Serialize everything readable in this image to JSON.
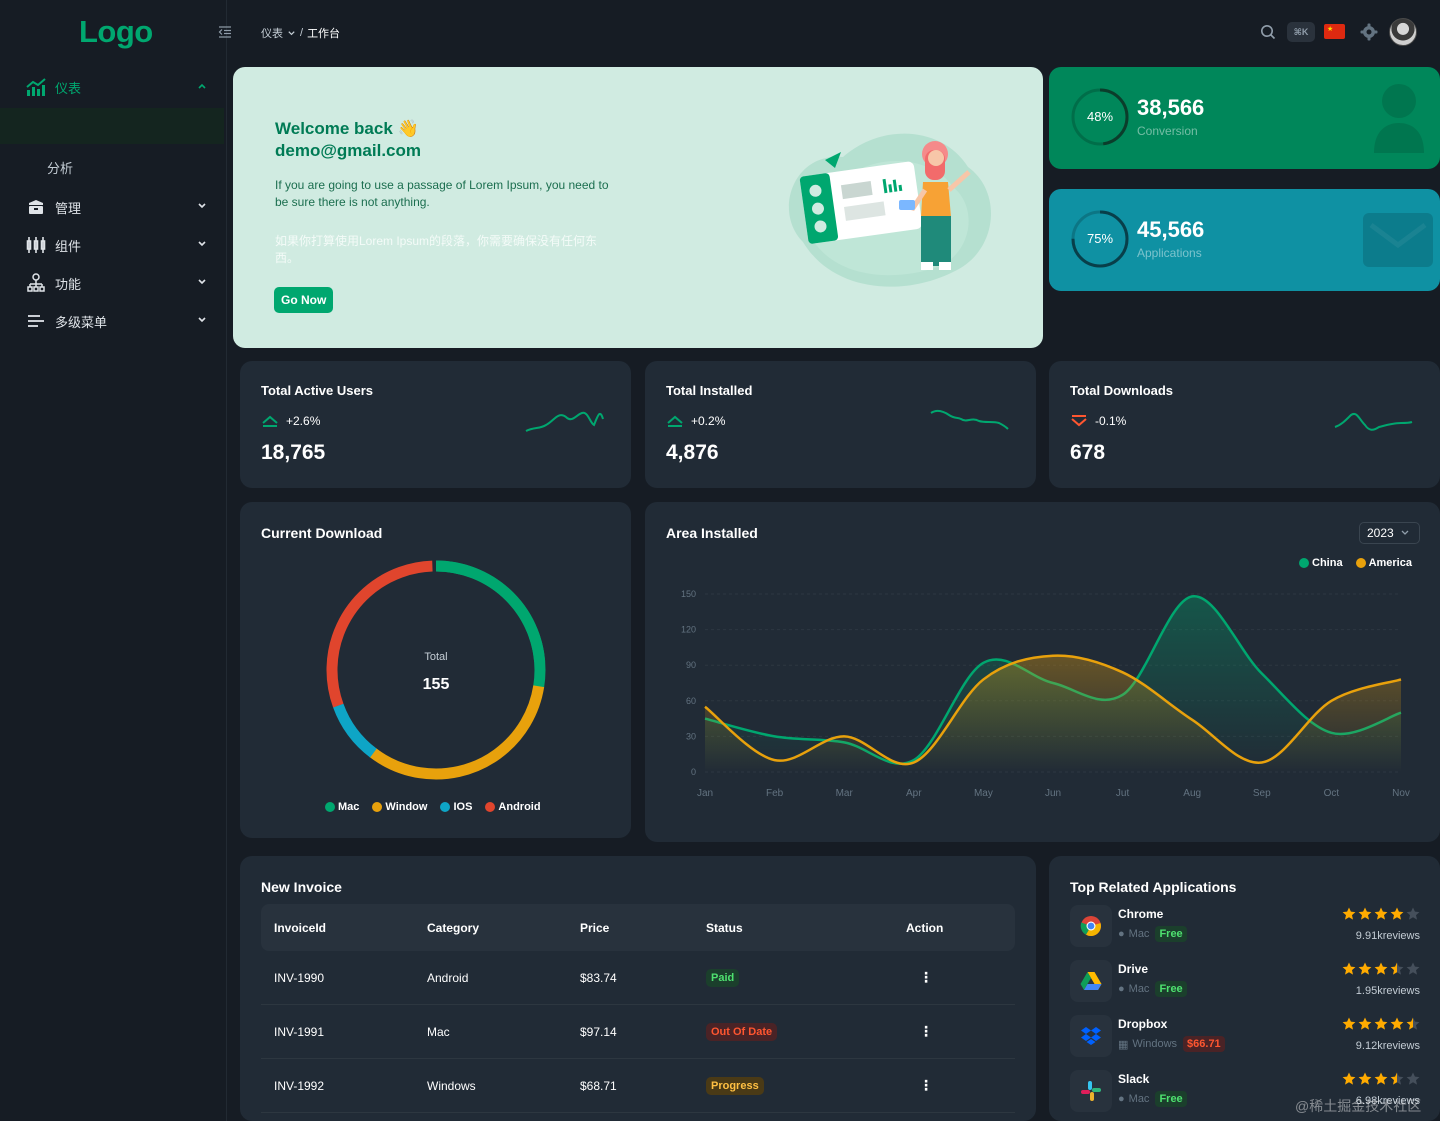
{
  "brand": {
    "logo": "Logo"
  },
  "sidebar": {
    "items": [
      {
        "label": "仪表",
        "icon": "chart-icon",
        "active": true
      },
      {
        "label": "管理",
        "icon": "cabinet-icon"
      },
      {
        "label": "组件",
        "icon": "components-icon"
      },
      {
        "label": "功能",
        "icon": "function-icon"
      },
      {
        "label": "多级菜单",
        "icon": "menu-icon"
      }
    ],
    "sub_items": [
      {
        "label": "分析"
      }
    ]
  },
  "header": {
    "breadcrumb": {
      "parent": "仪表",
      "separator": "/",
      "current": "工作台"
    },
    "shortcut": "⌘K"
  },
  "welcome": {
    "greeting": "Welcome back 👋",
    "email": "demo@gmail.com",
    "text_en": "If you are going to use a passage of Lorem Ipsum, you need to be sure there is not anything.",
    "text_cn": "如果你打算使用Lorem Ipsum的段落，你需要确保没有任何东西。",
    "button": "Go Now"
  },
  "stats": [
    {
      "percent": "48%",
      "progress": 0.48,
      "value": "38,566",
      "label": "Conversion",
      "color": "#00a76f"
    },
    {
      "percent": "75%",
      "progress": 0.75,
      "value": "45,566",
      "label": "Applications",
      "color": "#0f91a3"
    }
  ],
  "mini_cards": [
    {
      "title": "Total Active Users",
      "trend": "+2.6%",
      "direction": "up",
      "value": "18,765",
      "color": "#00a76f"
    },
    {
      "title": "Total Installed",
      "trend": "+0.2%",
      "direction": "up",
      "value": "4,876",
      "color": "#00a76f"
    },
    {
      "title": "Total Downloads",
      "trend": "-0.1%",
      "direction": "down",
      "value": "678",
      "color": "#00a76f"
    }
  ],
  "current_download": {
    "title": "Current Download",
    "center_label": "Total",
    "center_value": "155",
    "legend": [
      {
        "name": "Mac",
        "color": "#00a76f"
      },
      {
        "name": "Window",
        "color": "#e8a10c"
      },
      {
        "name": "IOS",
        "color": "#0ea5c6"
      },
      {
        "name": "Android",
        "color": "#e0452d"
      }
    ]
  },
  "area_installed": {
    "title": "Area Installed",
    "year": "2023",
    "legend": [
      {
        "name": "China",
        "color": "#00a76f"
      },
      {
        "name": "America",
        "color": "#e8a10c"
      }
    ]
  },
  "chart_data": {
    "type": "line",
    "title": "Area Installed",
    "categories": [
      "Jan",
      "Feb",
      "Mar",
      "Apr",
      "May",
      "Jun",
      "Jut",
      "Aug",
      "Sep",
      "Oct",
      "Nov"
    ],
    "series": [
      {
        "name": "China",
        "color": "#00a76f",
        "values": [
          45,
          30,
          25,
          10,
          92,
          75,
          65,
          148,
          83,
          33,
          50
        ]
      },
      {
        "name": "America",
        "color": "#e8a10c",
        "values": [
          55,
          10,
          30,
          8,
          78,
          98,
          84,
          44,
          8,
          60,
          78
        ]
      }
    ],
    "ylim": [
      0,
      150
    ],
    "yticks": [
      0,
      30,
      60,
      90,
      120,
      150
    ],
    "grid": true,
    "legend_position": "top-right"
  },
  "invoice": {
    "title": "New Invoice",
    "columns": [
      "InvoiceId",
      "Category",
      "Price",
      "Status",
      "Action"
    ],
    "rows": [
      {
        "id": "INV-1990",
        "category": "Android",
        "price": "$83.74",
        "status": "Paid",
        "fg": "#4ee06f",
        "bg": "#1b3f2c"
      },
      {
        "id": "INV-1991",
        "category": "Mac",
        "price": "$97.14",
        "status": "Out Of Date",
        "fg": "#ff5630",
        "bg": "#4a2326"
      },
      {
        "id": "INV-1992",
        "category": "Windows",
        "price": "$68.71",
        "status": "Progress",
        "fg": "#ffc043",
        "bg": "#4a3a16"
      }
    ]
  },
  "apps": {
    "title": "Top Related Applications",
    "items": [
      {
        "name": "Chrome",
        "os": "Mac",
        "price": "Free",
        "reviews": "9.91kreviews",
        "rating": 4,
        "free": true,
        "icon": "chrome-icon"
      },
      {
        "name": "Drive",
        "os": "Mac",
        "price": "Free",
        "reviews": "1.95kreviews",
        "rating": 3.5,
        "free": true,
        "icon": "drive-icon"
      },
      {
        "name": "Dropbox",
        "os": "Windows",
        "price": "$66.71",
        "reviews": "9.12kreviews",
        "rating": 4.5,
        "free": false,
        "icon": "dropbox-icon"
      },
      {
        "name": "Slack",
        "os": "Mac",
        "price": "Free",
        "reviews": "6.98kreviews",
        "rating": 3.5,
        "free": true,
        "icon": "slack-icon"
      }
    ]
  },
  "watermark": "@稀土掘金技术社区"
}
